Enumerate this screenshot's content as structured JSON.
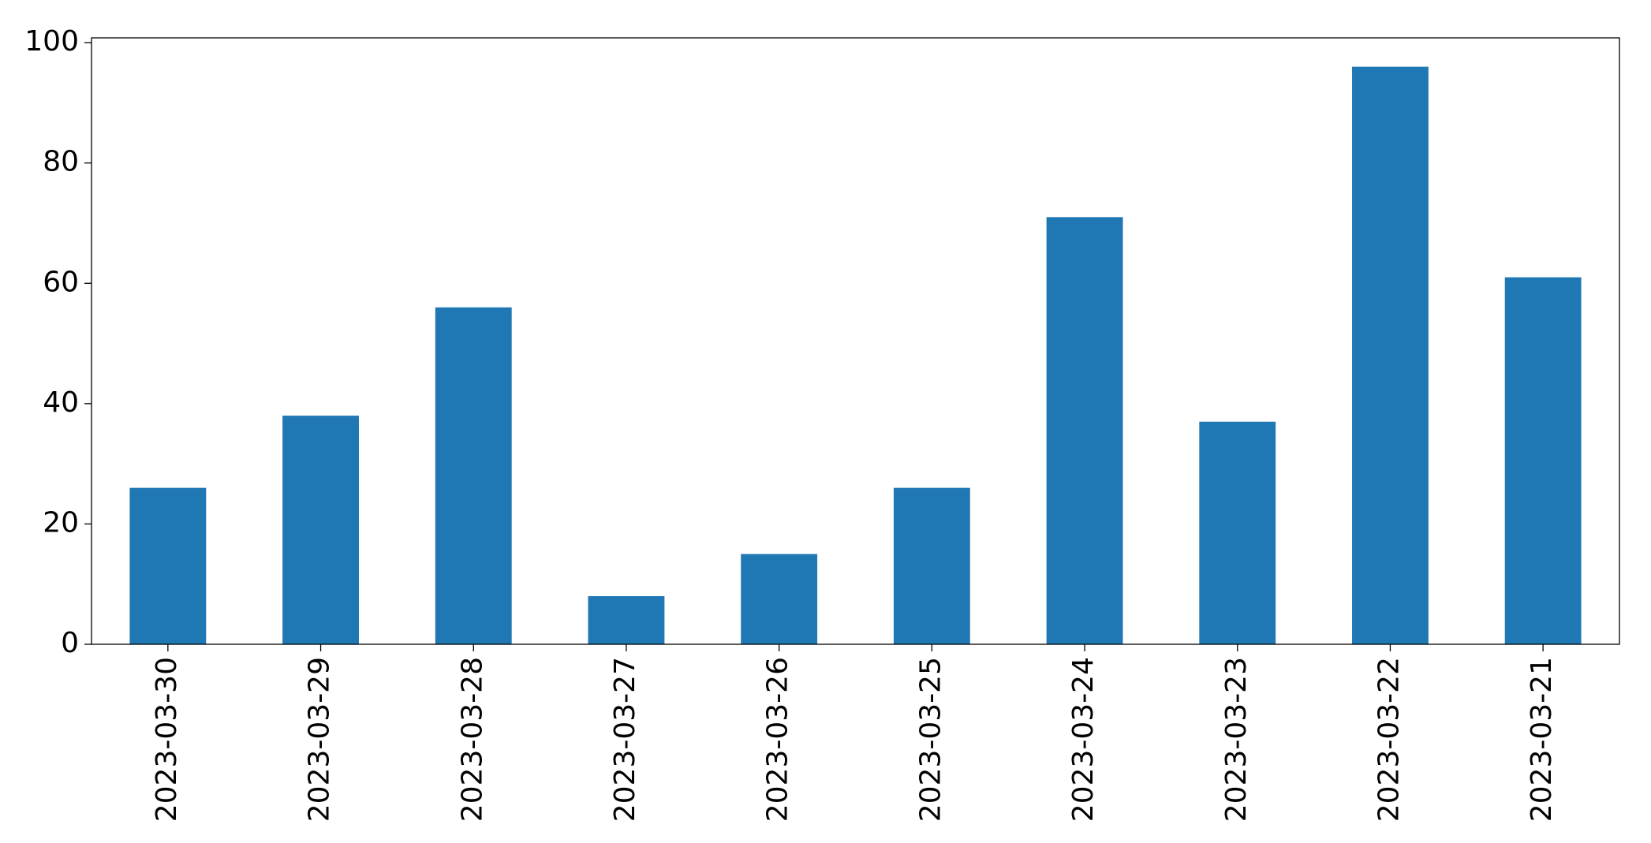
{
  "chart_data": {
    "type": "bar",
    "categories": [
      "2023-03-30",
      "2023-03-29",
      "2023-03-28",
      "2023-03-27",
      "2023-03-26",
      "2023-03-25",
      "2023-03-24",
      "2023-03-23",
      "2023-03-22",
      "2023-03-21"
    ],
    "values": [
      26,
      38,
      56,
      8,
      15,
      26,
      71,
      37,
      96,
      61
    ],
    "color": "#1f77b4",
    "ylim": [
      0,
      100.8
    ],
    "yticks": [
      0,
      20,
      40,
      60,
      80,
      100
    ],
    "grid": false
  }
}
